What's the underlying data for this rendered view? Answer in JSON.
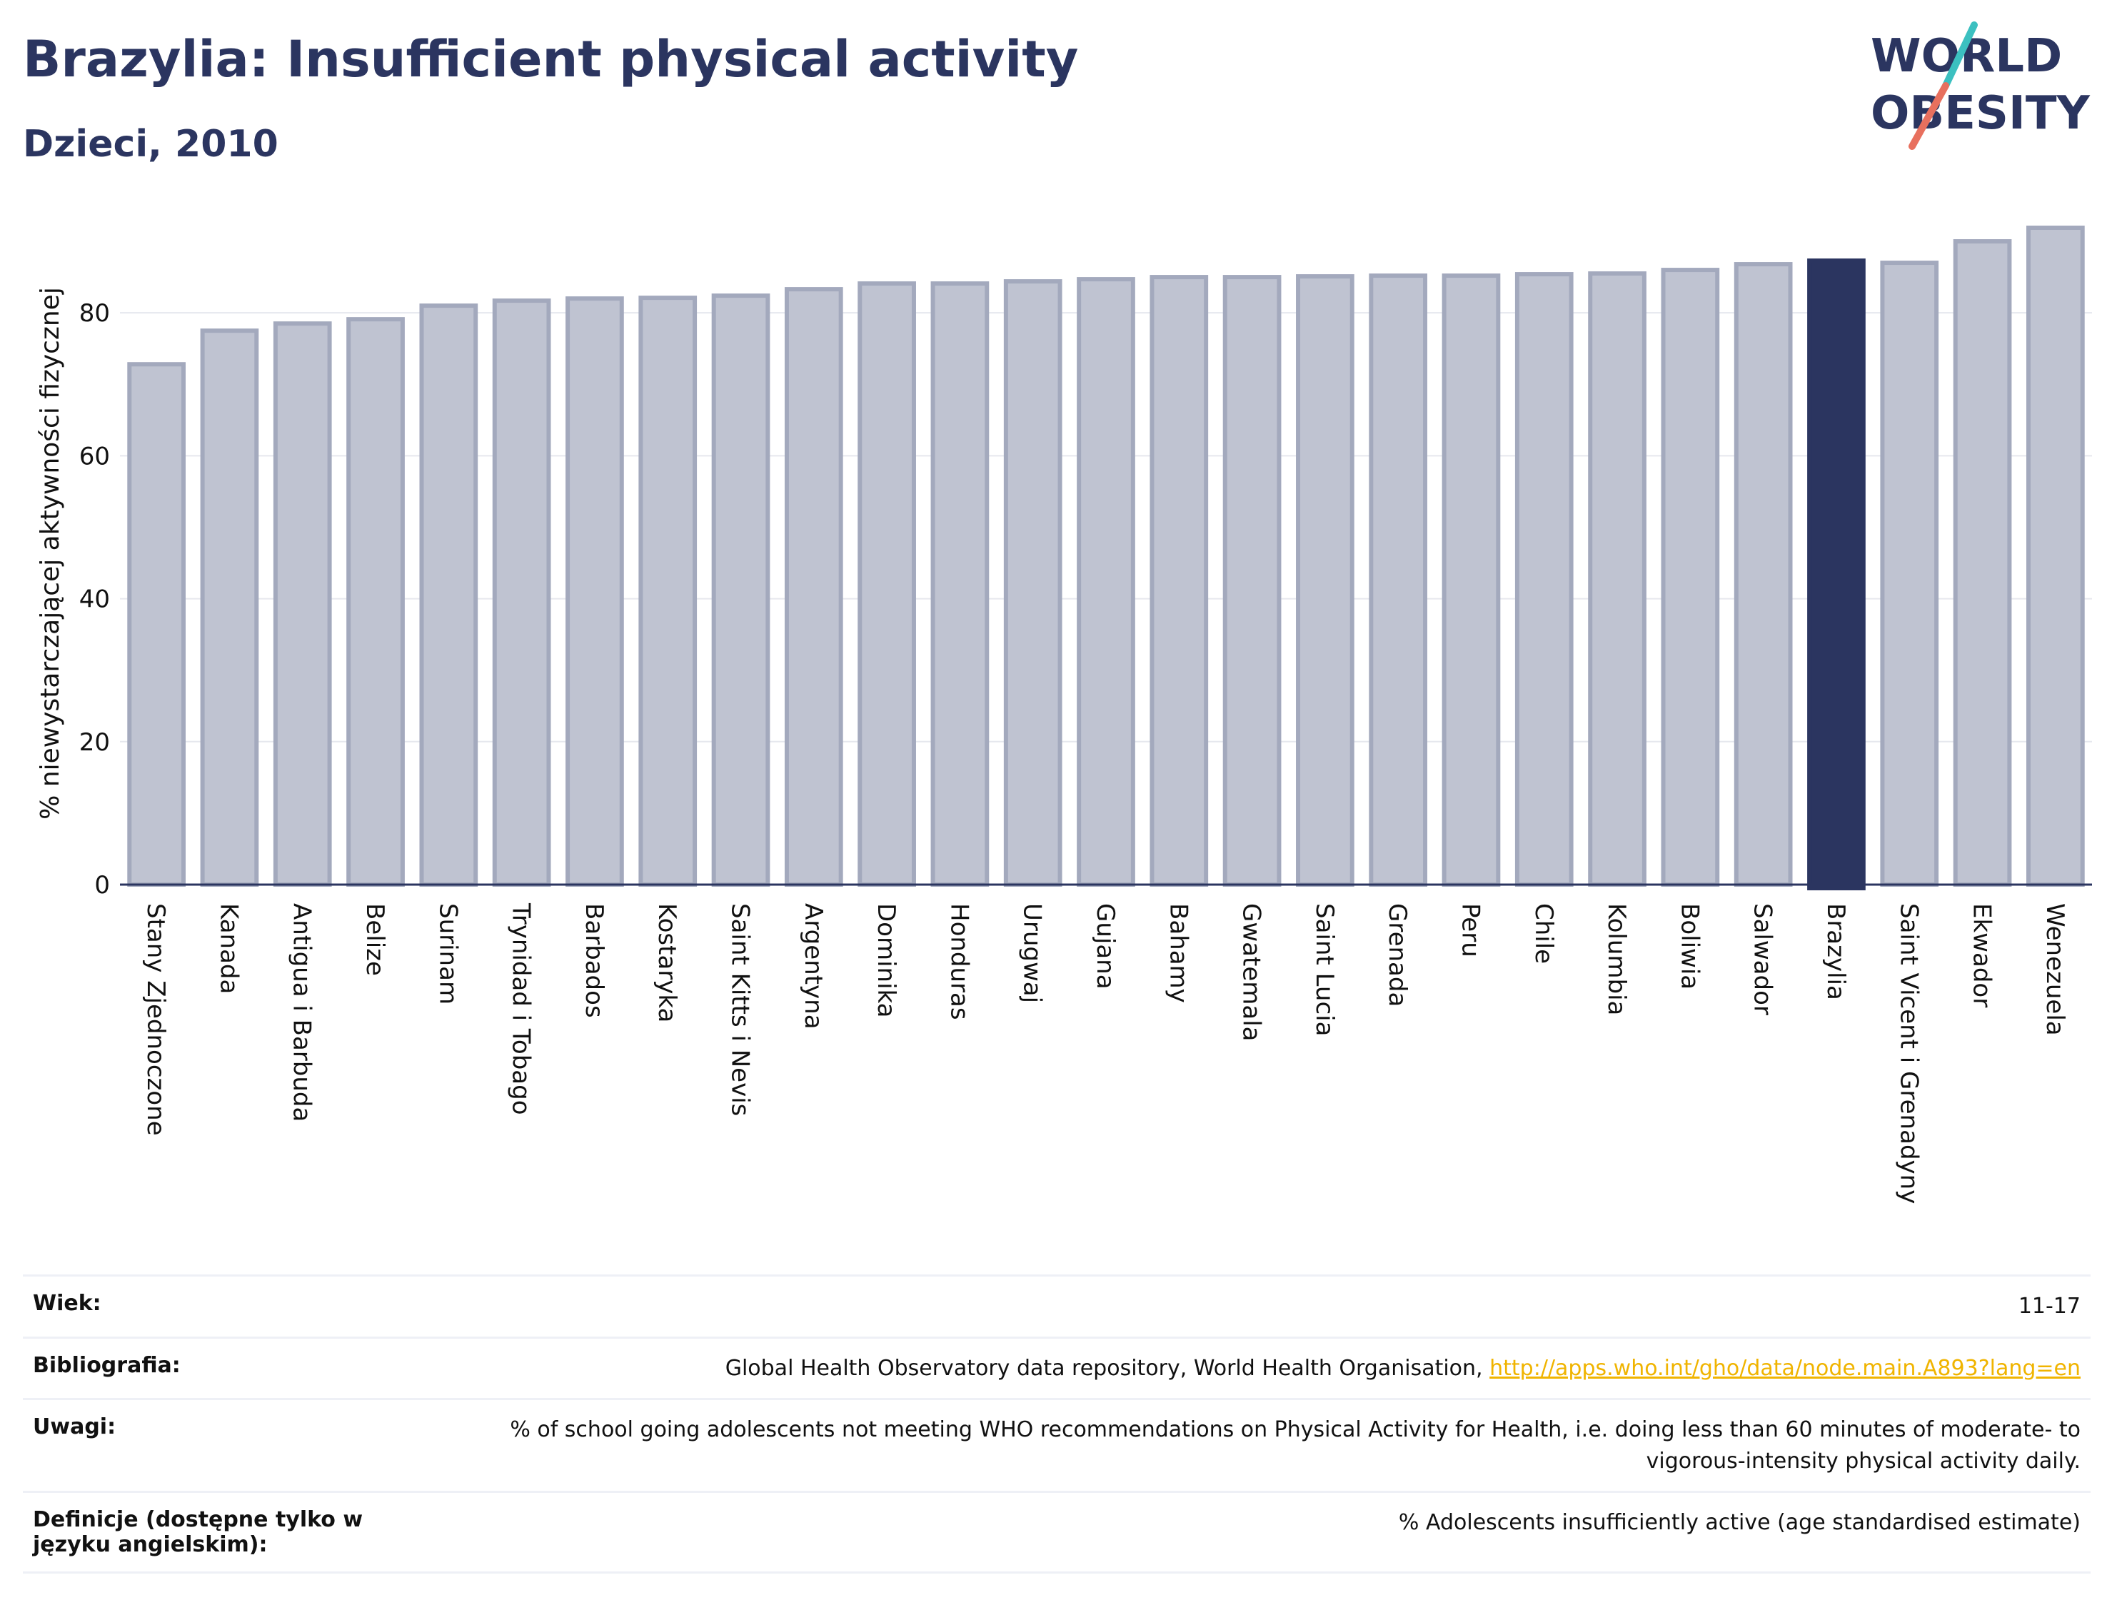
{
  "header": {
    "title": "Brazylia: Insufficient physical activity",
    "subtitle": "Dzieci, 2010"
  },
  "logo": {
    "line1": "WORLD",
    "line2": "OBESITY"
  },
  "colors": {
    "bar": "#bfc3d1",
    "bar_border": "#a3a9bd",
    "highlight": "#2b3560",
    "text": "#2b3560",
    "link": "#f0b400",
    "logo_teal": "#3cc0c0",
    "logo_coral": "#e8705e"
  },
  "chart_data": {
    "type": "bar",
    "ylabel": "% niewystarczającej aktywności fizycznej",
    "ylim": [
      0,
      92
    ],
    "yticks": [
      0,
      20,
      40,
      60,
      80
    ],
    "grid": true,
    "highlight": "Brazylia",
    "categories": [
      "Stany Zjednoczone",
      "Kanada",
      "Antigua i Barbuda",
      "Belize",
      "Surinam",
      "Trynidad i Tobago",
      "Barbados",
      "Kostaryka",
      "Saint Kitts i Nevis",
      "Argentyna",
      "Dominika",
      "Honduras",
      "Urugwaj",
      "Gujana",
      "Bahamy",
      "Gwatemala",
      "Saint Lucia",
      "Grenada",
      "Peru",
      "Chile",
      "Kolumbia",
      "Boliwia",
      "Salwador",
      "Brazylia",
      "Saint Vicent i Grenadyny",
      "Ekwador",
      "Wenezuela"
    ],
    "values": [
      72.8,
      77.5,
      78.5,
      79.1,
      81.0,
      81.7,
      82.0,
      82.1,
      82.4,
      83.3,
      84.1,
      84.1,
      84.4,
      84.7,
      85.0,
      85.0,
      85.1,
      85.2,
      85.2,
      85.4,
      85.5,
      86.0,
      86.8,
      87.3,
      87.0,
      90.0,
      91.9
    ]
  },
  "info": {
    "rows": [
      {
        "label": "Wiek:",
        "value": "11-17"
      },
      {
        "label": "Bibliografia:",
        "value": "Global Health Observatory data repository, World Health Organisation,",
        "link": "http://apps.who.int/gho/data/node.main.A893?lang=en"
      },
      {
        "label": "Uwagi:",
        "value": "% of school going adolescents not meeting WHO recommendations on Physical Activity for Health, i.e. doing less than 60 minutes of moderate- to vigorous-intensity physical activity daily."
      },
      {
        "label": "Definicje (dostępne tylko w języku angielskim):",
        "value": "% Adolescents insufficiently active (age standardised estimate)"
      }
    ]
  }
}
